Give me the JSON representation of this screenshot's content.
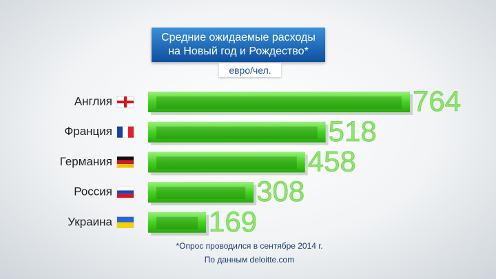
{
  "chart_data": {
    "type": "bar",
    "orientation": "horizontal",
    "title": "Средние ожидаемые расходы на Новый год и Рождество*",
    "subtitle": "евро/чел.",
    "categories": [
      "Англия",
      "Франция",
      "Германия",
      "Россия",
      "Украина"
    ],
    "values": [
      764,
      518,
      458,
      308,
      169
    ],
    "color": "#49d62a",
    "notes": [
      "*Опрос проводился в сентябре 2014 г.",
      "По данным deloitte.com"
    ]
  }
}
